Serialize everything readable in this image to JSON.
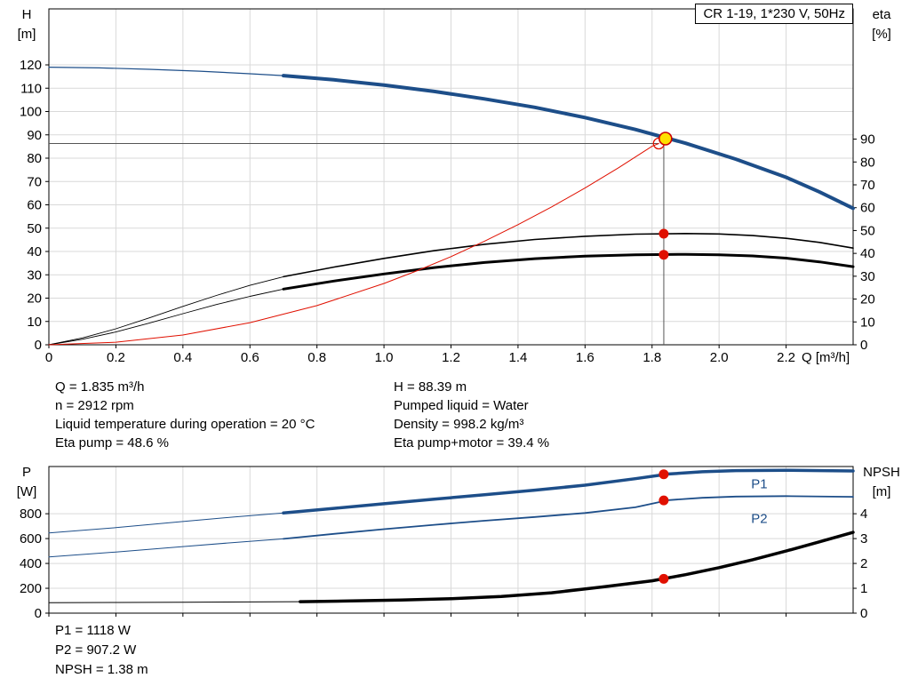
{
  "title_box": "CR 1-19, 1*230 V, 50Hz",
  "colors": {
    "curve_blue": "#1d4e89",
    "curve_red": "#e01000",
    "curve_black": "#000000",
    "duty_yellow": "#ffe000",
    "duty_ring": "#cc0000",
    "grid": "#d9d9d9",
    "guide": "#555555"
  },
  "info_top": {
    "left": [
      "Q = 1.835 m³/h",
      "n = 2912 rpm",
      "Liquid temperature during operation = 20 °C",
      "Eta pump = 48.6 %"
    ],
    "right": [
      "H = 88.39 m",
      "Pumped liquid = Water",
      "Density = 998.2 kg/m³",
      "Eta pump+motor = 39.4 %"
    ]
  },
  "info_bottom": [
    "P1 = 1118 W",
    "P2 = 907.2 W",
    "NPSH = 1.38 m"
  ],
  "chart_data": [
    {
      "id": "hq-eta",
      "type": "line",
      "x_axis": {
        "title": "Q [m³/h]",
        "min": 0,
        "max": 2.4,
        "ticks": [
          0,
          0.2,
          0.4,
          0.6,
          0.8,
          1.0,
          1.2,
          1.4,
          1.6,
          1.8,
          2.0,
          2.2
        ],
        "tick_labels": [
          "0",
          "0.2",
          "0.4",
          "0.6",
          "0.8",
          "1.0",
          "1.2",
          "1.4",
          "1.6",
          "1.8",
          "2.0",
          "2.2"
        ]
      },
      "y_left": {
        "label": "H",
        "unit": "[m]",
        "min": 0,
        "max": 144,
        "ticks": [
          0,
          10,
          20,
          30,
          40,
          50,
          60,
          70,
          80,
          90,
          100,
          110,
          120
        ]
      },
      "y_right": {
        "label": "eta",
        "unit": "[%]",
        "min": 0,
        "max": 147,
        "ticks": [
          0,
          10,
          20,
          30,
          40,
          50,
          60,
          70,
          80,
          90
        ]
      },
      "series": [
        {
          "name": "head-curve-thin",
          "axis": "left",
          "color": "#1d4e89",
          "width": 1.2,
          "points": [
            [
              0,
              119
            ],
            [
              0.15,
              118.7
            ],
            [
              0.3,
              118.1
            ],
            [
              0.45,
              117.3
            ],
            [
              0.6,
              116.2
            ],
            [
              0.7,
              115.4
            ]
          ]
        },
        {
          "name": "head-curve",
          "axis": "left",
          "color": "#1d4e89",
          "width": 4,
          "points": [
            [
              0.7,
              115.4
            ],
            [
              0.85,
              113.6
            ],
            [
              1.0,
              111.3
            ],
            [
              1.15,
              108.6
            ],
            [
              1.3,
              105.4
            ],
            [
              1.45,
              101.8
            ],
            [
              1.6,
              97.4
            ],
            [
              1.75,
              92.3
            ],
            [
              1.9,
              86.4
            ],
            [
              2.05,
              79.6
            ],
            [
              2.2,
              71.8
            ],
            [
              2.3,
              65.5
            ],
            [
              2.4,
              58.5
            ]
          ]
        },
        {
          "name": "eta-pump-curve-thin",
          "axis": "right",
          "color": "#000000",
          "width": 0.9,
          "points": [
            [
              0,
              0
            ],
            [
              0.1,
              3
            ],
            [
              0.2,
              7
            ],
            [
              0.3,
              11.8
            ],
            [
              0.4,
              16.8
            ],
            [
              0.5,
              21.6
            ],
            [
              0.6,
              26
            ],
            [
              0.7,
              29.8
            ]
          ]
        },
        {
          "name": "eta-pump-curve",
          "axis": "right",
          "color": "#000000",
          "width": 1.6,
          "points": [
            [
              0.7,
              29.8
            ],
            [
              0.85,
              34
            ],
            [
              1.0,
              37.8
            ],
            [
              1.15,
              41.2
            ],
            [
              1.3,
              44
            ],
            [
              1.45,
              46.1
            ],
            [
              1.6,
              47.5
            ],
            [
              1.75,
              48.4
            ],
            [
              1.9,
              48.7
            ],
            [
              2.0,
              48.5
            ],
            [
              2.1,
              47.8
            ],
            [
              2.2,
              46.6
            ],
            [
              2.3,
              44.8
            ],
            [
              2.4,
              42.3
            ]
          ]
        },
        {
          "name": "eta-pump-motor-curve-thin",
          "axis": "right",
          "color": "#000000",
          "width": 0.9,
          "points": [
            [
              0,
              0
            ],
            [
              0.1,
              2.4
            ],
            [
              0.2,
              5.6
            ],
            [
              0.3,
              9.5
            ],
            [
              0.4,
              13.6
            ],
            [
              0.5,
              17.6
            ],
            [
              0.6,
              21.2
            ],
            [
              0.7,
              24.4
            ]
          ]
        },
        {
          "name": "eta-pump-motor-curve",
          "axis": "right",
          "color": "#000000",
          "width": 3,
          "points": [
            [
              0.7,
              24.4
            ],
            [
              0.85,
              27.9
            ],
            [
              1.0,
              31
            ],
            [
              1.15,
              33.8
            ],
            [
              1.3,
              36
            ],
            [
              1.45,
              37.7
            ],
            [
              1.6,
              38.8
            ],
            [
              1.75,
              39.4
            ],
            [
              1.9,
              39.6
            ],
            [
              2.0,
              39.4
            ],
            [
              2.1,
              38.9
            ],
            [
              2.2,
              37.9
            ],
            [
              2.3,
              36.3
            ],
            [
              2.4,
              34.2
            ]
          ]
        },
        {
          "name": "system-curve",
          "axis": "left",
          "color": "#e01000",
          "width": 1,
          "points": [
            [
              0,
              0
            ],
            [
              0.2,
              1.1
            ],
            [
              0.4,
              4.2
            ],
            [
              0.6,
              9.5
            ],
            [
              0.8,
              16.8
            ],
            [
              1.0,
              26.3
            ],
            [
              1.1,
              31.8
            ],
            [
              1.2,
              37.8
            ],
            [
              1.3,
              44.4
            ],
            [
              1.4,
              51.5
            ],
            [
              1.5,
              59.1
            ],
            [
              1.6,
              67.2
            ],
            [
              1.7,
              75.9
            ],
            [
              1.8,
              85.1
            ],
            [
              1.82,
              86.3
            ]
          ]
        }
      ],
      "guides": [
        {
          "type": "v",
          "q": 1.835,
          "to": 88.39,
          "axis": "left"
        },
        {
          "type": "h",
          "v": 86.3,
          "to": 1.82,
          "axis": "left"
        }
      ],
      "markers": [
        {
          "type": "open",
          "q": 1.82,
          "v": 86.3,
          "axis": "left"
        },
        {
          "type": "duty",
          "q": 1.84,
          "v": 88.39,
          "axis": "left"
        },
        {
          "type": "dot",
          "q": 1.835,
          "v": 48.6,
          "axis": "right"
        },
        {
          "type": "dot",
          "q": 1.835,
          "v": 39.4,
          "axis": "right"
        }
      ],
      "annotations": []
    },
    {
      "id": "power-npsh",
      "type": "line",
      "x_axis": {
        "title": "",
        "min": 0,
        "max": 2.4,
        "ticks": [
          0,
          0.2,
          0.4,
          0.6,
          0.8,
          1.0,
          1.2,
          1.4,
          1.6,
          1.8,
          2.0,
          2.2
        ],
        "tick_labels": [
          "0",
          "0.2",
          "0.4",
          "0.6",
          "0.8",
          "1.0",
          "1.2",
          "1.4",
          "1.6",
          "1.8",
          "2.0",
          "2.2"
        ]
      },
      "y_left": {
        "label": "P",
        "unit": "[W]",
        "min": 0,
        "max": 1180,
        "ticks": [
          0,
          200,
          400,
          600,
          800
        ]
      },
      "y_right": {
        "label": "NPSH",
        "unit": "[m]",
        "min": 0,
        "max": 5.9,
        "ticks": [
          0,
          1,
          2,
          3,
          4
        ]
      },
      "series": [
        {
          "name": "p1-curve-thin",
          "axis": "left",
          "color": "#1d4e89",
          "width": 1,
          "points": [
            [
              0,
              645
            ],
            [
              0.2,
              688
            ],
            [
              0.4,
              737
            ],
            [
              0.55,
              773
            ],
            [
              0.7,
              806
            ]
          ]
        },
        {
          "name": "p1-curve",
          "axis": "left",
          "color": "#1d4e89",
          "width": 3.5,
          "points": [
            [
              0.7,
              806
            ],
            [
              0.85,
              843
            ],
            [
              1.0,
              880
            ],
            [
              1.15,
              917
            ],
            [
              1.3,
              953
            ],
            [
              1.45,
              990
            ],
            [
              1.6,
              1030
            ],
            [
              1.75,
              1082
            ],
            [
              1.85,
              1120
            ],
            [
              1.95,
              1138
            ],
            [
              2.05,
              1147
            ],
            [
              2.2,
              1150
            ],
            [
              2.4,
              1144
            ]
          ]
        },
        {
          "name": "p2-curve-thin",
          "axis": "left",
          "color": "#1d4e89",
          "width": 1,
          "points": [
            [
              0,
              452
            ],
            [
              0.2,
              492
            ],
            [
              0.4,
              536
            ],
            [
              0.55,
              568
            ],
            [
              0.7,
              598
            ]
          ]
        },
        {
          "name": "p2-curve",
          "axis": "left",
          "color": "#1d4e89",
          "width": 1.8,
          "points": [
            [
              0.7,
              598
            ],
            [
              0.85,
              638
            ],
            [
              1.0,
              676
            ],
            [
              1.15,
              711
            ],
            [
              1.3,
              744
            ],
            [
              1.45,
              774
            ],
            [
              1.6,
              806
            ],
            [
              1.75,
              852
            ],
            [
              1.85,
              910
            ],
            [
              1.95,
              928
            ],
            [
              2.05,
              938
            ],
            [
              2.2,
              942
            ],
            [
              2.4,
              936
            ]
          ]
        },
        {
          "name": "npsh-curve-thin",
          "axis": "right",
          "color": "#000000",
          "width": 1,
          "points": [
            [
              0,
              0.42
            ],
            [
              0.2,
              0.43
            ],
            [
              0.4,
              0.44
            ],
            [
              0.6,
              0.45
            ],
            [
              0.75,
              0.46
            ]
          ]
        },
        {
          "name": "npsh-curve",
          "axis": "right",
          "color": "#000000",
          "width": 3.5,
          "points": [
            [
              0.75,
              0.46
            ],
            [
              0.9,
              0.49
            ],
            [
              1.05,
              0.53
            ],
            [
              1.2,
              0.58
            ],
            [
              1.35,
              0.67
            ],
            [
              1.5,
              0.82
            ],
            [
              1.65,
              1.05
            ],
            [
              1.8,
              1.3
            ],
            [
              1.9,
              1.55
            ],
            [
              2.0,
              1.83
            ],
            [
              2.1,
              2.15
            ],
            [
              2.2,
              2.5
            ],
            [
              2.3,
              2.87
            ],
            [
              2.4,
              3.25
            ]
          ]
        }
      ],
      "guides": [],
      "markers": [
        {
          "type": "dot",
          "q": 1.835,
          "v": 1118,
          "axis": "left"
        },
        {
          "type": "dot",
          "q": 1.835,
          "v": 907.2,
          "axis": "left"
        },
        {
          "type": "dot",
          "q": 1.835,
          "v": 1.38,
          "axis": "right"
        }
      ],
      "annotations": [
        {
          "text": "P1",
          "q": 2.12,
          "v": 1040,
          "axis": "left",
          "color": "#1d4e89"
        },
        {
          "text": "P2",
          "q": 2.12,
          "v": 760,
          "axis": "left",
          "color": "#1d4e89"
        }
      ]
    }
  ]
}
